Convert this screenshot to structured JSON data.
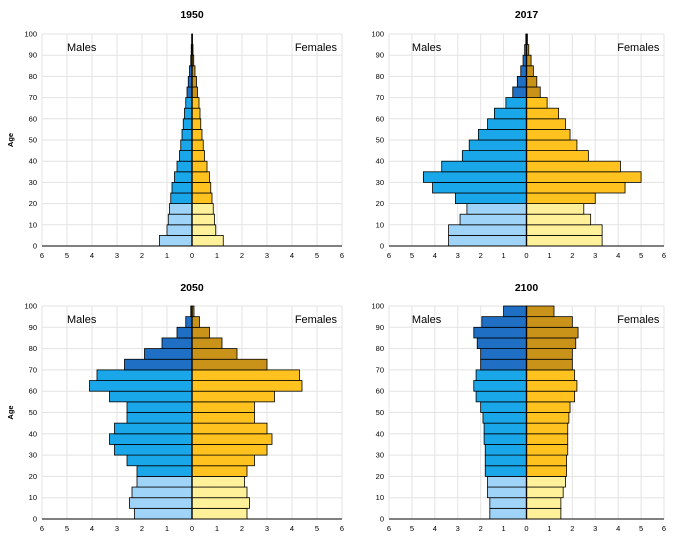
{
  "figure": {
    "y_axis_label": "Age",
    "y_ticks": [
      0,
      10,
      20,
      30,
      40,
      50,
      60,
      70,
      80,
      90,
      100
    ],
    "x_ticks": [
      6,
      5,
      4,
      3,
      2,
      1,
      0,
      1,
      2,
      3,
      4,
      5,
      6
    ],
    "colors": {
      "male_young": "#9fd3f7",
      "male_mid": "#1aa7ea",
      "male_old": "#1f6fc5",
      "female_young": "#fff09a",
      "female_mid": "#ffc21f",
      "female_old": "#c9931a",
      "grid": "#e3e3e3",
      "outline": "#000000"
    }
  },
  "chart_data": [
    {
      "type": "bar",
      "subtype": "population-pyramid",
      "title": "1950",
      "male_label": "Males",
      "female_label": "Females",
      "xlim": [
        -6,
        6
      ],
      "ylim": [
        0,
        100
      ],
      "age_groups": [
        "0-4",
        "5-9",
        "10-14",
        "15-19",
        "20-24",
        "25-29",
        "30-34",
        "35-39",
        "40-44",
        "45-49",
        "50-54",
        "55-59",
        "60-64",
        "65-69",
        "70-74",
        "75-79",
        "80-84",
        "85-89",
        "90-94",
        "95-99"
      ],
      "male": [
        1.3,
        1.0,
        0.95,
        0.9,
        0.85,
        0.8,
        0.7,
        0.6,
        0.5,
        0.45,
        0.4,
        0.35,
        0.3,
        0.25,
        0.2,
        0.15,
        0.1,
        0.05,
        0.03,
        0.01
      ],
      "female": [
        1.25,
        0.95,
        0.9,
        0.85,
        0.8,
        0.75,
        0.7,
        0.6,
        0.5,
        0.45,
        0.4,
        0.35,
        0.32,
        0.28,
        0.22,
        0.18,
        0.12,
        0.07,
        0.04,
        0.02
      ]
    },
    {
      "type": "bar",
      "subtype": "population-pyramid",
      "title": "2017",
      "male_label": "Males",
      "female_label": "Females",
      "xlim": [
        -6,
        6
      ],
      "ylim": [
        0,
        100
      ],
      "age_groups": [
        "0-4",
        "5-9",
        "10-14",
        "15-19",
        "20-24",
        "25-29",
        "30-34",
        "35-39",
        "40-44",
        "45-49",
        "50-54",
        "55-59",
        "60-64",
        "65-69",
        "70-74",
        "75-79",
        "80-84",
        "85-89",
        "90-94",
        "95-99"
      ],
      "male": [
        3.4,
        3.4,
        2.9,
        2.6,
        3.1,
        4.1,
        4.5,
        3.7,
        2.8,
        2.5,
        2.1,
        1.7,
        1.4,
        0.9,
        0.6,
        0.4,
        0.25,
        0.15,
        0.08,
        0.03
      ],
      "female": [
        3.3,
        3.3,
        2.8,
        2.5,
        3.0,
        4.3,
        5.0,
        4.1,
        2.7,
        2.2,
        1.9,
        1.7,
        1.4,
        0.9,
        0.6,
        0.45,
        0.3,
        0.2,
        0.1,
        0.04
      ]
    },
    {
      "type": "bar",
      "subtype": "population-pyramid",
      "title": "2050",
      "male_label": "Males",
      "female_label": "Females",
      "xlim": [
        -6,
        6
      ],
      "ylim": [
        0,
        100
      ],
      "age_groups": [
        "0-4",
        "5-9",
        "10-14",
        "15-19",
        "20-24",
        "25-29",
        "30-34",
        "35-39",
        "40-44",
        "45-49",
        "50-54",
        "55-59",
        "60-64",
        "65-69",
        "70-74",
        "75-79",
        "80-84",
        "85-89",
        "90-94",
        "95-99"
      ],
      "male": [
        2.3,
        2.5,
        2.4,
        2.2,
        2.2,
        2.6,
        3.1,
        3.3,
        3.1,
        2.6,
        2.6,
        3.3,
        4.1,
        3.8,
        2.7,
        1.9,
        1.2,
        0.6,
        0.25,
        0.05
      ],
      "female": [
        2.2,
        2.3,
        2.2,
        2.1,
        2.2,
        2.5,
        3.0,
        3.2,
        3.0,
        2.5,
        2.5,
        3.3,
        4.4,
        4.3,
        3.0,
        1.8,
        1.2,
        0.7,
        0.3,
        0.08
      ]
    },
    {
      "type": "bar",
      "subtype": "population-pyramid",
      "title": "2100",
      "male_label": "Males",
      "female_label": "Females",
      "xlim": [
        -6,
        6
      ],
      "ylim": [
        0,
        100
      ],
      "age_groups": [
        "0-4",
        "5-9",
        "10-14",
        "15-19",
        "20-24",
        "25-29",
        "30-34",
        "35-39",
        "40-44",
        "45-49",
        "50-54",
        "55-59",
        "60-64",
        "65-69",
        "70-74",
        "75-79",
        "80-84",
        "85-89",
        "90-94",
        "95-99"
      ],
      "male": [
        1.6,
        1.6,
        1.7,
        1.7,
        1.8,
        1.8,
        1.8,
        1.85,
        1.85,
        1.9,
        2.0,
        2.2,
        2.3,
        2.2,
        2.0,
        2.0,
        2.15,
        2.3,
        1.95,
        1.0
      ],
      "female": [
        1.5,
        1.5,
        1.6,
        1.7,
        1.75,
        1.75,
        1.8,
        1.8,
        1.8,
        1.85,
        1.9,
        2.1,
        2.2,
        2.1,
        2.0,
        2.0,
        2.15,
        2.25,
        2.0,
        1.2
      ]
    }
  ]
}
